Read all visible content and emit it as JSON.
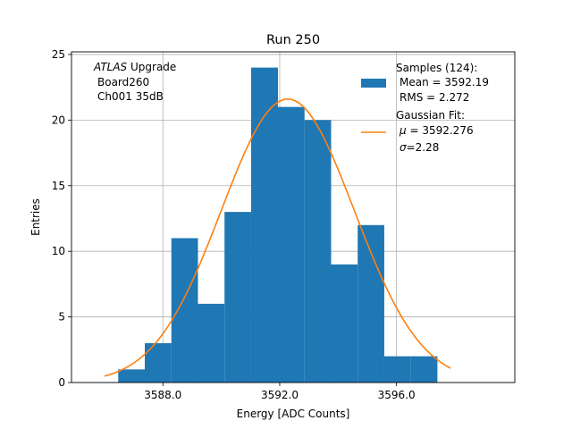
{
  "chart_data": {
    "type": "bar",
    "title": "Run 250",
    "xlabel": "Energy [ADC Counts]",
    "ylabel": "Entries",
    "xlim": [
      3584.87,
      3600.05
    ],
    "ylim": [
      0,
      25.2
    ],
    "grid": true,
    "xticks": [
      3588.0,
      3592.0,
      3596.0
    ],
    "xtick_labels": [
      "3588.0",
      "3592.0",
      "3596.0"
    ],
    "yticks": [
      0,
      5,
      10,
      15,
      20,
      25
    ],
    "ytick_labels": [
      "0",
      "5",
      "10",
      "15",
      "20",
      "25"
    ],
    "histogram": {
      "bin_edges": [
        3585.56,
        3586.47,
        3587.38,
        3588.29,
        3589.2,
        3590.11,
        3591.02,
        3591.94,
        3592.85,
        3593.76,
        3594.67,
        3595.58,
        3596.49,
        3597.4,
        3598.31
      ],
      "counts": [
        0,
        1,
        3,
        11,
        6,
        13,
        24,
        21,
        20,
        9,
        12,
        2,
        2,
        0
      ],
      "color": "#1f77b4"
    },
    "fit": {
      "mu": 3592.276,
      "sigma": 2.28,
      "amplitude": 21.6,
      "x_range": [
        3586.0,
        3597.85
      ],
      "color": "#ff7f0e"
    },
    "annotation": {
      "experiment": "ATLAS",
      "experiment_suffix": " Upgrade",
      "board": "Board260",
      "channel": "Ch001 35dB"
    },
    "legend": {
      "placement": "top-right",
      "samples_label": "Samples (124):",
      "mean_label": "Mean = 3592.19",
      "rms_label": "RMS = 2.272",
      "fit_label": "Gaussian Fit:",
      "mu_symbol": "μ",
      "mu_value": " = 3592.276",
      "sigma_symbol": "σ",
      "sigma_value": "=2.28"
    }
  }
}
